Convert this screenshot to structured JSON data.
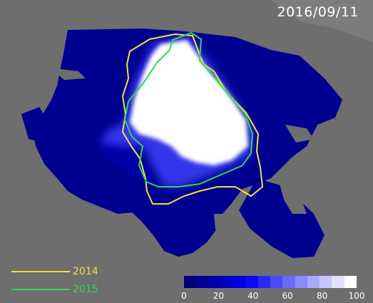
{
  "date_label": "2016/09/11",
  "legend": [
    {
      "label": "2014",
      "color": "#f0e23c"
    },
    {
      "label": "2015",
      "color": "#2fd65a"
    }
  ],
  "colorbar": {
    "ticks": [
      "0",
      "20",
      "40",
      "60",
      "80",
      "100"
    ],
    "colors": [
      "#00007a",
      "#000094",
      "#0000ad",
      "#0000c6",
      "#0000df",
      "#0a0af5",
      "#2a2af8",
      "#4a4afa",
      "#6a6afb",
      "#8a8afc",
      "#a8a8fd",
      "#c6c6fe",
      "#e2e2ff",
      "#ffffff"
    ]
  },
  "colors": {
    "land": "#6e6e6e",
    "ocean": "#000090",
    "ocean_light": "#0000b8",
    "ice": "#ffffff"
  }
}
